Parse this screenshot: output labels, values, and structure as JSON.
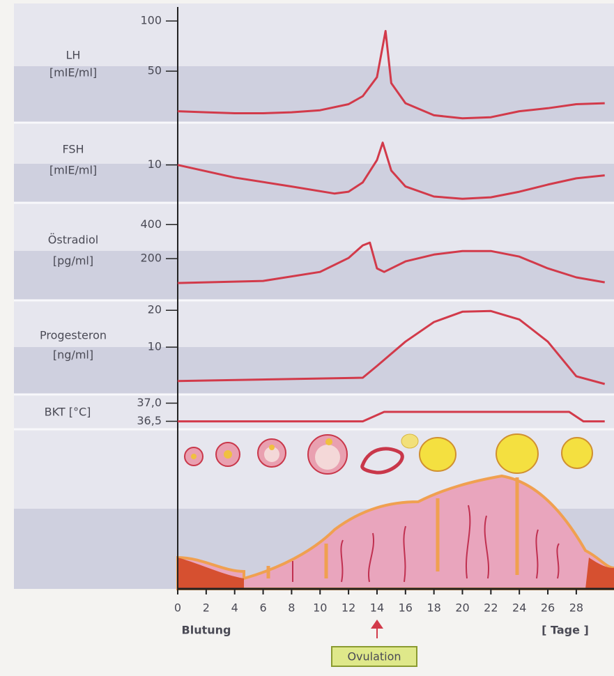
{
  "chart_data": [
    {
      "type": "line",
      "ylabel": [
        "LH",
        "[mIE/ml]"
      ],
      "ylim": [
        0,
        114
      ],
      "yticks": [
        50,
        100
      ],
      "color": "#d23a4a",
      "x": [
        0,
        2,
        4,
        6,
        8,
        10,
        12,
        13,
        14,
        14.6,
        15,
        16,
        18,
        20,
        22,
        24,
        26,
        28,
        30
      ],
      "values": [
        10,
        9,
        8,
        8,
        9,
        11,
        17,
        25,
        44,
        90,
        38,
        18,
        6,
        3,
        4,
        10,
        13,
        17,
        18
      ]
    },
    {
      "type": "line",
      "ylabel": [
        "FSH",
        "[mIE/ml]"
      ],
      "ylim": [
        0,
        21
      ],
      "yticks": [
        10
      ],
      "color": "#d23a4a",
      "x": [
        0,
        4,
        8,
        11,
        12,
        13,
        14,
        14.4,
        15,
        16,
        18,
        20,
        22,
        24,
        26,
        28,
        30
      ],
      "values": [
        10,
        6.6,
        4.2,
        2.3,
        2.8,
        5.3,
        11.3,
        16,
        8.5,
        4.2,
        1.5,
        0.9,
        1.3,
        2.8,
        4.7,
        6.4,
        7.2
      ]
    },
    {
      "type": "line",
      "ylabel": [
        "Östradiol",
        "[pg/ml]"
      ],
      "ylim": [
        0,
        520
      ],
      "yticks": [
        200,
        400
      ],
      "color": "#d23a4a",
      "x": [
        0,
        6,
        10,
        12,
        13,
        13.5,
        14,
        14.5,
        16,
        18,
        20,
        22,
        24,
        26,
        28,
        30
      ],
      "values": [
        57,
        69,
        122,
        204,
        278,
        294,
        143,
        122,
        184,
        224,
        245,
        245,
        212,
        143,
        90,
        61
      ]
    },
    {
      "type": "line",
      "ylabel": [
        "Progesteron",
        "[ng/ml]"
      ],
      "ylim": [
        0,
        22.5
      ],
      "yticks": [
        10,
        20
      ],
      "color": "#d23a4a",
      "x": [
        0,
        13,
        14,
        16,
        18,
        20,
        22,
        24,
        26,
        28,
        30
      ],
      "values": [
        0.8,
        1.7,
        4.9,
        11.5,
        16.8,
        19.6,
        19.8,
        17.5,
        11.5,
        2.1,
        0
      ]
    },
    {
      "type": "line",
      "ylabel": [
        "BKT [°C]"
      ],
      "ylim": [
        36.3,
        37.2
      ],
      "yticks": [
        {
          "value": 36.5,
          "label": "36,5"
        },
        {
          "value": 37,
          "label": "37,0"
        }
      ],
      "color": "#d23a4a",
      "x": [
        0,
        13,
        14.5,
        27.5,
        28.5,
        30
      ],
      "values": [
        36.5,
        36.5,
        36.76,
        36.76,
        36.5,
        36.5
      ]
    }
  ],
  "x_axis": {
    "xlim": [
      0,
      30.6
    ],
    "xticks": [
      0,
      2,
      4,
      6,
      8,
      10,
      12,
      14,
      16,
      18,
      20,
      22,
      24,
      26,
      28
    ],
    "label_left": "Blutung",
    "label_right": "[ Tage ]",
    "annotation": "Ovulation"
  }
}
